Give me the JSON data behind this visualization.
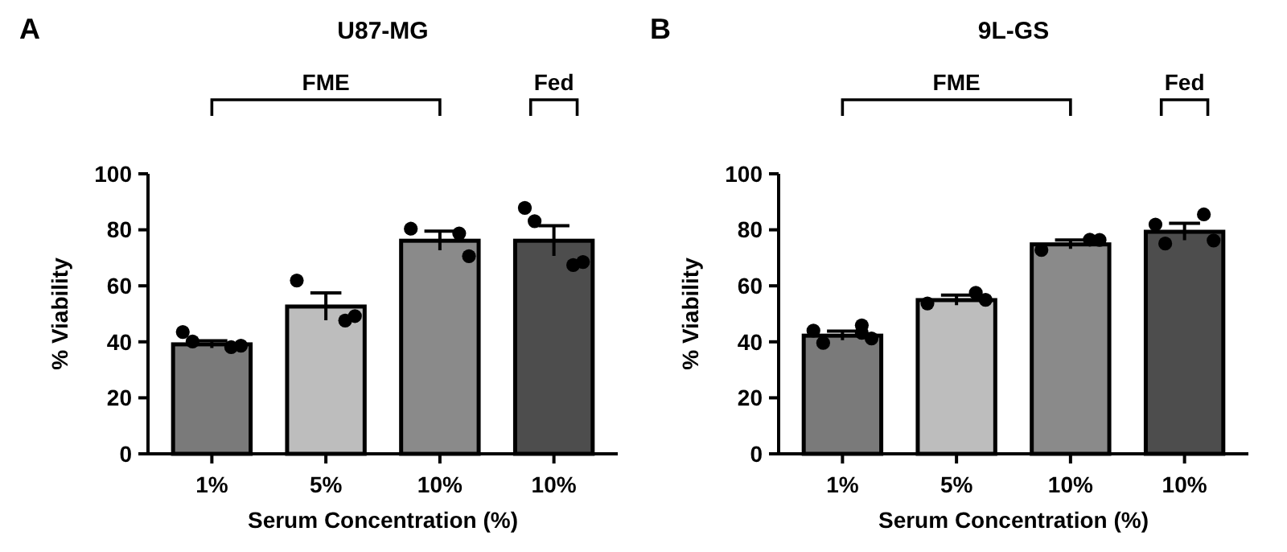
{
  "chart_data": [
    {
      "type": "bar",
      "title": "U87-MG",
      "xlabel": "Serum Concentration (%)",
      "ylabel": "% Viability",
      "annotations": [
        "A",
        "FME",
        "Fed"
      ],
      "categories": [
        "1%",
        "5%",
        "10%",
        "10%"
      ],
      "ylim": [
        0,
        100
      ],
      "yticks": [
        0,
        20,
        40,
        60,
        80,
        100
      ],
      "series": [
        {
          "type": "bar",
          "colors": [
            "#7a7a7a",
            "#bdbdbd",
            "#8a8a8a",
            "#4d4d4d"
          ],
          "values": [
            39.1,
            52.6,
            76.1,
            76.1
          ],
          "errors": [
            1.3,
            4.9,
            3.4,
            5.4
          ]
        },
        {
          "type": "scatter",
          "color": "#000000",
          "values": [
            43.5,
            61.9,
            80.4,
            87.8
          ]
        },
        {
          "type": "scatter",
          "color": "#000000",
          "values": [
            40.1,
            47.6,
            78.7,
            83.1
          ]
        },
        {
          "type": "scatter",
          "color": "#000000",
          "values": [
            38.1,
            49.2,
            70.6,
            67.4
          ]
        },
        {
          "type": "scatter",
          "color": "#000000",
          "values": [
            38.6,
            null,
            null,
            68.5
          ]
        }
      ]
    },
    {
      "type": "bar",
      "title": "9L-GS",
      "xlabel": "Serum Concentration (%)",
      "ylabel": "% Viability",
      "annotations": [
        "B",
        "FME",
        "Fed"
      ],
      "categories": [
        "1%",
        "5%",
        "10%",
        "10%"
      ],
      "ylim": [
        0,
        100
      ],
      "yticks": [
        0,
        20,
        40,
        60,
        80,
        100
      ],
      "series": [
        {
          "type": "bar",
          "colors": [
            "#7a7a7a",
            "#bdbdbd",
            "#8a8a8a",
            "#4d4d4d"
          ],
          "values": [
            42.2,
            54.9,
            74.8,
            79.3
          ],
          "errors": [
            1.6,
            1.8,
            1.6,
            3.0
          ]
        },
        {
          "type": "scatter",
          "color": "#000000",
          "values": [
            44.0,
            53.7,
            72.8,
            81.9
          ]
        },
        {
          "type": "scatter",
          "color": "#000000",
          "values": [
            39.6,
            57.5,
            76.5,
            75.1
          ]
        },
        {
          "type": "scatter",
          "color": "#000000",
          "values": [
            43.2,
            55.0,
            76.4,
            85.5
          ]
        },
        {
          "type": "scatter",
          "color": "#000000",
          "values": [
            45.9,
            null,
            null,
            76.2
          ]
        },
        {
          "type": "scatter",
          "color": "#000000",
          "values": [
            41.2,
            null,
            null,
            null
          ]
        }
      ]
    }
  ]
}
